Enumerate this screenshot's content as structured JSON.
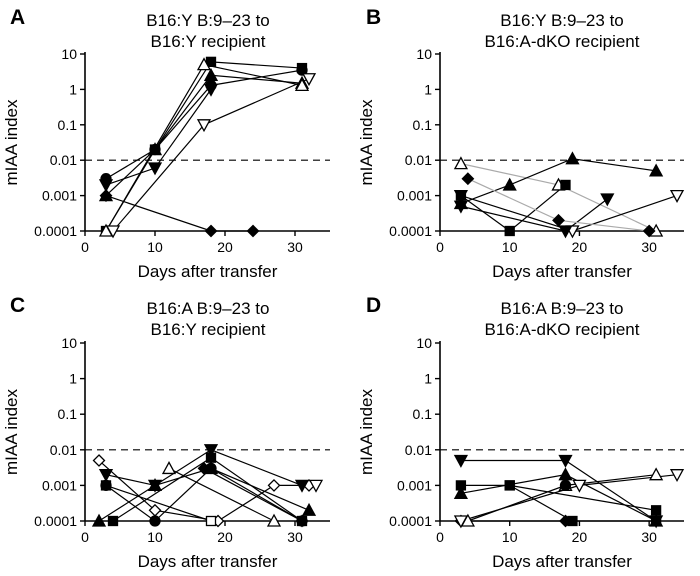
{
  "chart_data": [
    {
      "panel": "A",
      "type": "scatter",
      "title": [
        "B16:Y B:9–23 to",
        "B16:Y recipient"
      ],
      "xlabel": "Days after transfer",
      "ylabel": "mIAA index",
      "xlim": [
        0,
        35
      ],
      "xticks": [
        0,
        10,
        20,
        30
      ],
      "yscale": "log",
      "ylim": [
        0.0001,
        10
      ],
      "yticks": [
        "0.0001",
        "0.001",
        "0.01",
        "0.1",
        "1",
        "10"
      ],
      "reference_line": 0.01,
      "series": [
        {
          "marker": "triangle-up-filled",
          "color": "#000000",
          "x": [
            3,
            10,
            18,
            31
          ],
          "y": [
            0.001,
            0.02,
            2.5,
            1.5
          ]
        },
        {
          "marker": "circle-filled",
          "color": "#000000",
          "x": [
            3,
            10,
            18,
            31
          ],
          "y": [
            0.003,
            0.02,
            1.3,
            3.5
          ]
        },
        {
          "marker": "square-filled",
          "color": "#000000",
          "x": [
            3,
            10,
            18,
            31
          ],
          "y": [
            0.0001,
            0.02,
            6,
            4
          ]
        },
        {
          "marker": "triangle-down-filled",
          "color": "#000000",
          "x": [
            3,
            10,
            18
          ],
          "y": [
            0.002,
            0.006,
            1
          ]
        },
        {
          "marker": "triangle-down-open",
          "color": "#000000",
          "x": [
            4,
            17,
            32
          ],
          "y": [
            0.0001,
            0.1,
            2
          ]
        },
        {
          "marker": "triangle-up-open",
          "color": "#000000",
          "x": [
            3,
            17,
            31
          ],
          "y": [
            0.0001,
            5,
            1.3
          ]
        },
        {
          "marker": "diamond-filled",
          "color": "#000000",
          "x": [
            3,
            18,
            24
          ],
          "y": [
            0.001,
            0.0001,
            0.0001
          ]
        }
      ]
    },
    {
      "panel": "B",
      "type": "scatter",
      "title": [
        "B16:Y B:9–23 to",
        "B16:A-dKO recipient"
      ],
      "xlabel": "Days after transfer",
      "ylabel": "mIAA index",
      "xlim": [
        0,
        35
      ],
      "xticks": [
        0,
        10,
        20,
        30
      ],
      "yscale": "log",
      "ylim": [
        0.0001,
        10
      ],
      "yticks": [
        "0.0001",
        "0.001",
        "0.01",
        "0.1",
        "1",
        "10"
      ],
      "reference_line": 0.01,
      "series": [
        {
          "marker": "triangle-up-open",
          "color": "#000000",
          "gray_line": true,
          "x": [
            3,
            17,
            31
          ],
          "y": [
            0.008,
            0.002,
            0.0001
          ]
        },
        {
          "marker": "triangle-down-open",
          "color": "#000000",
          "x": [
            3,
            19,
            34
          ],
          "y": [
            0.001,
            0.0001,
            0.001
          ]
        },
        {
          "marker": "triangle-up-filled",
          "color": "#000000",
          "x": [
            3,
            10,
            19,
            31
          ],
          "y": [
            0.0006,
            0.002,
            0.011,
            0.005
          ]
        },
        {
          "marker": "square-filled",
          "color": "#000000",
          "x": [
            3,
            10,
            18
          ],
          "y": [
            0.001,
            0.0001,
            0.002
          ]
        },
        {
          "marker": "triangle-down-filled",
          "color": "#000000",
          "x": [
            3,
            18,
            24
          ],
          "y": [
            0.0005,
            0.0001,
            0.0008
          ]
        },
        {
          "marker": "diamond-filled",
          "color": "#000000",
          "gray_line": true,
          "x": [
            4,
            17,
            30
          ],
          "y": [
            0.003,
            0.0002,
            0.0001
          ]
        }
      ]
    },
    {
      "panel": "C",
      "type": "scatter",
      "title": [
        "B16:A B:9–23 to",
        "B16:Y recipient"
      ],
      "xlabel": "Days after transfer",
      "ylabel": "mIAA index",
      "xlim": [
        0,
        35
      ],
      "xticks": [
        0,
        10,
        20,
        30
      ],
      "yscale": "log",
      "ylim": [
        0.0001,
        10
      ],
      "yticks": [
        "0.0001",
        "0.001",
        "0.01",
        "0.1",
        "1",
        "10"
      ],
      "reference_line": 0.01,
      "series": [
        {
          "marker": "diamond-open",
          "color": "#000000",
          "x": [
            2,
            10,
            19,
            27,
            32
          ],
          "y": [
            0.005,
            0.0002,
            0.0001,
            0.001,
            0.001
          ]
        },
        {
          "marker": "triangle-down-filled",
          "color": "#000000",
          "x": [
            3,
            10,
            18,
            31
          ],
          "y": [
            0.002,
            0.001,
            0.01,
            0.001
          ]
        },
        {
          "marker": "square-open",
          "color": "#000000",
          "x": [
            3,
            18
          ],
          "y": [
            0.001,
            0.0001
          ]
        },
        {
          "marker": "triangle-up-open",
          "color": "#000000",
          "x": [
            12,
            27
          ],
          "y": [
            0.003,
            0.0001
          ]
        },
        {
          "marker": "triangle-up-filled",
          "color": "#000000",
          "x": [
            2,
            10,
            18,
            32
          ],
          "y": [
            0.0001,
            0.001,
            0.003,
            0.0002
          ]
        },
        {
          "marker": "circle-filled",
          "color": "#000000",
          "x": [
            3,
            10,
            18,
            31
          ],
          "y": [
            0.001,
            0.0001,
            0.003,
            0.0001
          ]
        },
        {
          "marker": "square-filled",
          "color": "#000000",
          "x": [
            4,
            18,
            31
          ],
          "y": [
            0.0001,
            0.006,
            0.0001
          ]
        },
        {
          "marker": "diamond-filled",
          "color": "#000000",
          "x": [
            17,
            31
          ],
          "y": [
            0.003,
            0.0001
          ]
        },
        {
          "marker": "triangle-down-open",
          "color": "#000000",
          "x": [
            33
          ],
          "y": [
            0.001
          ]
        }
      ]
    },
    {
      "panel": "D",
      "type": "scatter",
      "title": [
        "B16:A B:9–23 to",
        "B16:A-dKO recipient"
      ],
      "xlabel": "Days after transfer",
      "ylabel": "mIAA index",
      "xlim": [
        0,
        35
      ],
      "xticks": [
        0,
        10,
        20,
        30
      ],
      "yscale": "log",
      "ylim": [
        0.0001,
        10
      ],
      "yticks": [
        "0.0001",
        "0.001",
        "0.01",
        "0.1",
        "1",
        "10"
      ],
      "reference_line": 0.01,
      "series": [
        {
          "marker": "triangle-down-filled",
          "color": "#000000",
          "x": [
            3,
            18,
            31
          ],
          "y": [
            0.005,
            0.005,
            0.0001
          ]
        },
        {
          "marker": "square-filled",
          "color": "#000000",
          "x": [
            3,
            10,
            31
          ],
          "y": [
            0.001,
            0.001,
            0.0002
          ]
        },
        {
          "marker": "triangle-up-filled",
          "color": "#000000",
          "x": [
            3,
            18,
            31
          ],
          "y": [
            0.0006,
            0.002,
            0.0001
          ]
        },
        {
          "marker": "diamond-filled",
          "color": "#000000",
          "x": [
            3,
            18
          ],
          "y": [
            0.0001,
            0.0001
          ]
        },
        {
          "marker": "square-filled",
          "color": "#000000",
          "x": [
            10,
            19,
            31
          ],
          "y": [
            0.001,
            0.0001,
            0.0001
          ]
        },
        {
          "marker": "triangle-up-open",
          "color": "#000000",
          "x": [
            4,
            18,
            31
          ],
          "y": [
            0.0001,
            0.001,
            0.002
          ]
        },
        {
          "marker": "triangle-down-open",
          "color": "#000000",
          "x": [
            3,
            20,
            34
          ],
          "y": [
            0.0001,
            0.001,
            0.002
          ]
        },
        {
          "marker": "circle-filled",
          "color": "#000000",
          "x": [
            18
          ],
          "y": [
            0.001
          ]
        }
      ]
    }
  ]
}
